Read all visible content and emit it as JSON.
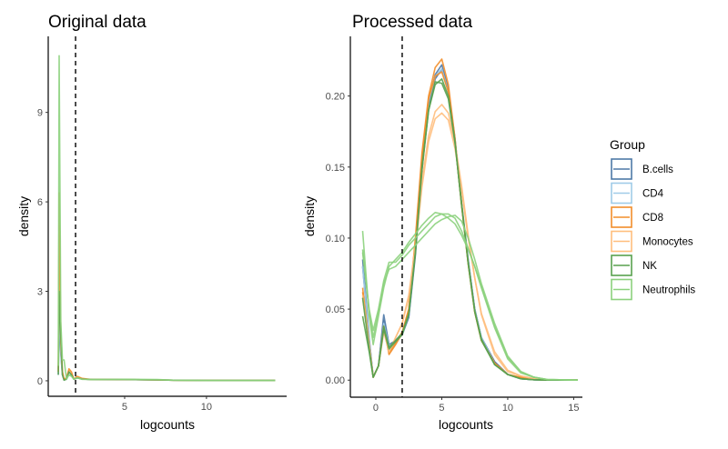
{
  "chart_data": [
    {
      "type": "line",
      "title": "Original data",
      "xlabel": "logcounts",
      "ylabel": "density",
      "xlim": [
        0.33,
        14.9
      ],
      "ylim": [
        -0.52,
        11.55
      ],
      "xticks": [
        5,
        10
      ],
      "yticks": [
        0,
        3,
        6,
        9
      ],
      "grid": false,
      "vline": 2,
      "x": [
        0.95,
        1.0,
        1.1,
        1.2,
        1.3,
        1.45,
        1.6,
        1.75,
        1.9,
        2.1,
        2.4,
        3,
        5,
        7,
        8,
        10,
        14.2
      ],
      "series": [
        {
          "group": "B.cells",
          "values": [
            0.2,
            2.2,
            0.9,
            0.2,
            0.03,
            0.08,
            0.3,
            0.2,
            0.05,
            0.1,
            0.06,
            0.04,
            0.04,
            0.03,
            0.02,
            0.01,
            0.01
          ]
        },
        {
          "group": "CD4",
          "values": [
            0.2,
            2.5,
            1.0,
            0.2,
            0.03,
            0.08,
            0.3,
            0.2,
            0.05,
            0.1,
            0.06,
            0.04,
            0.04,
            0.03,
            0.02,
            0.01,
            0.01
          ]
        },
        {
          "group": "Monocytes",
          "values": [
            0.3,
            5.2,
            1.2,
            0.3,
            0.05,
            0.1,
            0.35,
            0.25,
            0.05,
            0.12,
            0.06,
            0.04,
            0.04,
            0.03,
            0.02,
            0.01,
            0.01
          ]
        },
        {
          "group": "CD8",
          "values": [
            0.3,
            6.3,
            1.5,
            0.3,
            0.05,
            0.1,
            0.4,
            0.3,
            0.05,
            0.15,
            0.08,
            0.04,
            0.04,
            0.03,
            0.02,
            0.01,
            0.01
          ]
        },
        {
          "group": "NK",
          "values": [
            0.2,
            3.0,
            1.5,
            0.2,
            0.02,
            0.05,
            0.3,
            0.2,
            0.05,
            0.1,
            0.06,
            0.04,
            0.04,
            0.03,
            0.02,
            0.01,
            0.01
          ]
        },
        {
          "group": "Neutrophils",
          "values": [
            0.5,
            10.9,
            2.0,
            0.7,
            0.7,
            0.05,
            0.2,
            0.15,
            0.05,
            0.1,
            0.05,
            0.04,
            0.05,
            0.04,
            0.02,
            0.01,
            0.01
          ]
        }
      ]
    },
    {
      "type": "line",
      "title": "Processed data",
      "xlabel": "logcounts",
      "ylabel": "density",
      "xlim": [
        -1.93,
        15.66
      ],
      "ylim": [
        -0.012,
        0.242
      ],
      "xticks": [
        0,
        5,
        10,
        15
      ],
      "yticks": [
        0.0,
        0.05,
        0.1,
        0.15,
        0.2
      ],
      "ytick_labels": [
        "0.00",
        "0.05",
        "0.10",
        "0.15",
        "0.20"
      ],
      "grid": false,
      "vline": 2,
      "x": [
        -1,
        -0.5,
        -0.2,
        0.2,
        0.6,
        1,
        1.5,
        2,
        2.5,
        3,
        3.5,
        4,
        4.5,
        5,
        5.5,
        6,
        6.5,
        7,
        7.5,
        8,
        9,
        10,
        11,
        12,
        13,
        15.3
      ],
      "series": [
        {
          "group": "B.cells",
          "values": [
            0.085,
            0.03,
            0.002,
            0.01,
            0.046,
            0.025,
            0.028,
            0.033,
            0.045,
            0.09,
            0.15,
            0.195,
            0.215,
            0.222,
            0.205,
            0.17,
            0.125,
            0.085,
            0.05,
            0.03,
            0.013,
            0.004,
            0.001,
            0.0003,
            0,
            0
          ]
        },
        {
          "group": "B.cells",
          "values": [
            0.08,
            0.028,
            0.002,
            0.01,
            0.042,
            0.024,
            0.027,
            0.032,
            0.044,
            0.088,
            0.148,
            0.192,
            0.212,
            0.219,
            0.203,
            0.168,
            0.124,
            0.084,
            0.05,
            0.03,
            0.013,
            0.004,
            0.001,
            0.0003,
            0,
            0
          ]
        },
        {
          "group": "CD4",
          "values": [
            0.08,
            0.028,
            0.002,
            0.01,
            0.04,
            0.024,
            0.027,
            0.032,
            0.046,
            0.092,
            0.152,
            0.196,
            0.214,
            0.219,
            0.203,
            0.168,
            0.124,
            0.084,
            0.05,
            0.03,
            0.012,
            0.004,
            0.001,
            0.0003,
            0,
            0
          ]
        },
        {
          "group": "CD8",
          "values": [
            0.065,
            0.025,
            0.002,
            0.01,
            0.038,
            0.018,
            0.025,
            0.033,
            0.05,
            0.1,
            0.16,
            0.2,
            0.22,
            0.226,
            0.208,
            0.17,
            0.124,
            0.082,
            0.048,
            0.028,
            0.012,
            0.004,
            0.002,
            0.0005,
            0,
            0
          ]
        },
        {
          "group": "CD8",
          "values": [
            0.062,
            0.024,
            0.002,
            0.01,
            0.036,
            0.019,
            0.026,
            0.034,
            0.05,
            0.098,
            0.157,
            0.198,
            0.214,
            0.217,
            0.203,
            0.168,
            0.123,
            0.082,
            0.048,
            0.028,
            0.012,
            0.004,
            0.002,
            0.0005,
            0,
            0
          ]
        },
        {
          "group": "Monocytes",
          "values": [
            0.06,
            0.025,
            0.002,
            0.01,
            0.035,
            0.02,
            0.03,
            0.04,
            0.06,
            0.095,
            0.14,
            0.172,
            0.189,
            0.194,
            0.188,
            0.167,
            0.137,
            0.102,
            0.072,
            0.046,
            0.018,
            0.006,
            0.003,
            0.001,
            0,
            0
          ]
        },
        {
          "group": "Monocytes",
          "values": [
            0.058,
            0.024,
            0.002,
            0.01,
            0.034,
            0.02,
            0.03,
            0.04,
            0.058,
            0.092,
            0.136,
            0.168,
            0.184,
            0.188,
            0.183,
            0.163,
            0.134,
            0.1,
            0.072,
            0.047,
            0.02,
            0.007,
            0.003,
            0.001,
            0,
            0
          ]
        },
        {
          "group": "NK",
          "values": [
            0.045,
            0.02,
            0.002,
            0.01,
            0.036,
            0.022,
            0.027,
            0.032,
            0.046,
            0.09,
            0.15,
            0.19,
            0.208,
            0.212,
            0.2,
            0.168,
            0.124,
            0.082,
            0.048,
            0.028,
            0.011,
            0.004,
            0.001,
            0.0003,
            0,
            0
          ]
        },
        {
          "group": "NK",
          "values": [
            0.058,
            0.022,
            0.002,
            0.01,
            0.038,
            0.023,
            0.028,
            0.033,
            0.047,
            0.09,
            0.148,
            0.19,
            0.21,
            0.209,
            0.198,
            0.167,
            0.124,
            0.083,
            0.049,
            0.029,
            0.011,
            0.004,
            0.001,
            0.0003,
            0,
            0
          ]
        },
        {
          "group": "Neutrophils",
          "values": [
            0.09,
            0.05,
            0.035,
            0.05,
            0.07,
            0.083,
            0.083,
            0.088,
            0.095,
            0.1,
            0.105,
            0.11,
            0.115,
            0.117,
            0.117,
            0.114,
            0.105,
            0.093,
            0.08,
            0.065,
            0.037,
            0.015,
            0.005,
            0.002,
            0.0005,
            0
          ]
        },
        {
          "group": "Neutrophils",
          "values": [
            0.105,
            0.045,
            0.025,
            0.045,
            0.065,
            0.08,
            0.085,
            0.09,
            0.097,
            0.103,
            0.109,
            0.114,
            0.118,
            0.117,
            0.114,
            0.11,
            0.102,
            0.092,
            0.08,
            0.066,
            0.038,
            0.016,
            0.006,
            0.002,
            0.0005,
            0
          ]
        },
        {
          "group": "Neutrophils",
          "values": [
            0.092,
            0.048,
            0.03,
            0.048,
            0.068,
            0.078,
            0.08,
            0.085,
            0.09,
            0.095,
            0.1,
            0.105,
            0.11,
            0.113,
            0.115,
            0.116,
            0.112,
            0.1,
            0.085,
            0.068,
            0.04,
            0.017,
            0.006,
            0.002,
            0.0005,
            0
          ]
        }
      ]
    }
  ],
  "legend": {
    "title": "Group",
    "position": "right",
    "items": [
      {
        "label": "B.cells",
        "color": "#4e79a7"
      },
      {
        "label": "CD4",
        "color": "#a0cbe8"
      },
      {
        "label": "CD8",
        "color": "#f28e2b"
      },
      {
        "label": "Monocytes",
        "color": "#ffbe7d"
      },
      {
        "label": "NK",
        "color": "#59a14f"
      },
      {
        "label": "Neutrophils",
        "color": "#8cd17d"
      }
    ]
  }
}
